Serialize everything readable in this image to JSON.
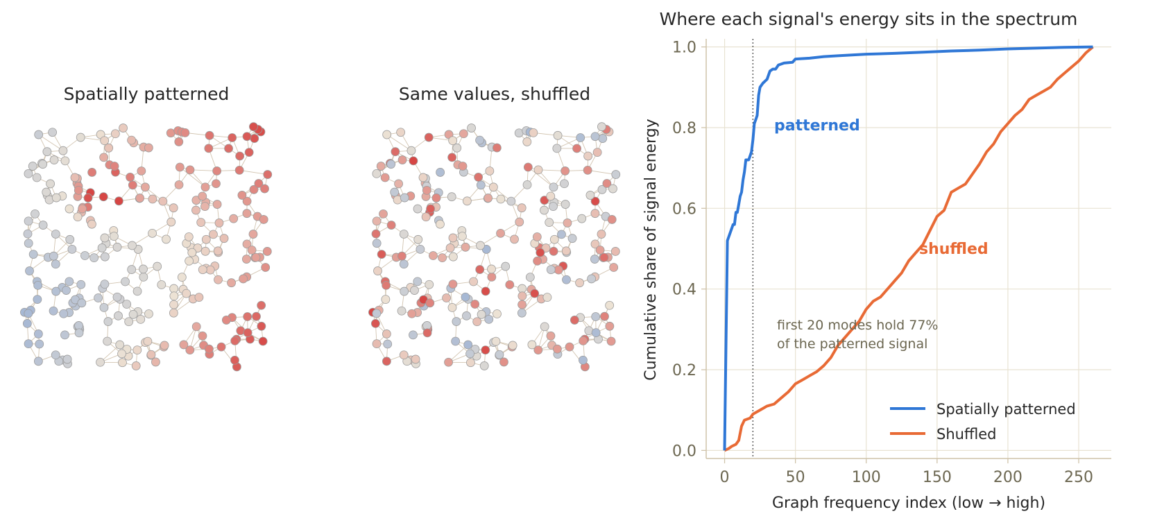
{
  "panels": {
    "left_title": "Spatially patterned",
    "middle_title": "Same values, shuffled"
  },
  "chart_data": {
    "type": "line",
    "title": "Where each signal's energy sits in the spectrum",
    "xlabel": "Graph frequency index (low → high)",
    "ylabel": "Cumulative share of signal energy",
    "xlim": [
      -13,
      273
    ],
    "ylim": [
      -0.02,
      1.02
    ],
    "xticks": [
      0,
      50,
      100,
      150,
      200,
      250
    ],
    "yticks": [
      "0.0",
      "0.2",
      "0.4",
      "0.6",
      "0.8",
      "1.0"
    ],
    "grid": true,
    "legend_position": "lower-right",
    "reference_line_x": 20,
    "series": [
      {
        "name": "Spatially patterned",
        "color": "#2f77d6",
        "inline_label": "patterned",
        "points": [
          [
            0,
            0
          ],
          [
            1,
            0.27
          ],
          [
            2,
            0.52
          ],
          [
            3,
            0.53
          ],
          [
            5,
            0.55
          ],
          [
            6,
            0.56
          ],
          [
            7,
            0.56
          ],
          [
            8,
            0.59
          ],
          [
            9,
            0.59
          ],
          [
            10,
            0.61
          ],
          [
            11,
            0.63
          ],
          [
            12,
            0.64
          ],
          [
            13,
            0.67
          ],
          [
            14,
            0.69
          ],
          [
            15,
            0.72
          ],
          [
            17,
            0.72
          ],
          [
            18,
            0.73
          ],
          [
            19,
            0.74
          ],
          [
            20,
            0.77
          ],
          [
            21,
            0.81
          ],
          [
            22,
            0.82
          ],
          [
            23,
            0.83
          ],
          [
            24,
            0.88
          ],
          [
            25,
            0.9
          ],
          [
            27,
            0.91
          ],
          [
            30,
            0.92
          ],
          [
            32,
            0.94
          ],
          [
            34,
            0.945
          ],
          [
            36,
            0.945
          ],
          [
            38,
            0.955
          ],
          [
            42,
            0.96
          ],
          [
            48,
            0.962
          ],
          [
            50,
            0.97
          ],
          [
            60,
            0.972
          ],
          [
            70,
            0.976
          ],
          [
            80,
            0.978
          ],
          [
            90,
            0.98
          ],
          [
            100,
            0.982
          ],
          [
            120,
            0.984
          ],
          [
            140,
            0.987
          ],
          [
            160,
            0.99
          ],
          [
            180,
            0.992
          ],
          [
            200,
            0.995
          ],
          [
            220,
            0.997
          ],
          [
            240,
            0.999
          ],
          [
            260,
            1.0
          ]
        ]
      },
      {
        "name": "Shuffled",
        "color": "#e86a35",
        "inline_label": "shuffled",
        "points": [
          [
            0,
            0
          ],
          [
            3,
            0.005
          ],
          [
            5,
            0.01
          ],
          [
            8,
            0.015
          ],
          [
            10,
            0.025
          ],
          [
            12,
            0.06
          ],
          [
            14,
            0.075
          ],
          [
            18,
            0.08
          ],
          [
            20,
            0.09
          ],
          [
            25,
            0.1
          ],
          [
            30,
            0.11
          ],
          [
            35,
            0.115
          ],
          [
            40,
            0.13
          ],
          [
            45,
            0.145
          ],
          [
            50,
            0.165
          ],
          [
            55,
            0.175
          ],
          [
            60,
            0.185
          ],
          [
            65,
            0.195
          ],
          [
            70,
            0.21
          ],
          [
            75,
            0.23
          ],
          [
            80,
            0.26
          ],
          [
            85,
            0.28
          ],
          [
            90,
            0.3
          ],
          [
            95,
            0.32
          ],
          [
            100,
            0.35
          ],
          [
            105,
            0.37
          ],
          [
            110,
            0.38
          ],
          [
            115,
            0.4
          ],
          [
            120,
            0.42
          ],
          [
            125,
            0.44
          ],
          [
            130,
            0.47
          ],
          [
            135,
            0.49
          ],
          [
            140,
            0.51
          ],
          [
            145,
            0.545
          ],
          [
            150,
            0.58
          ],
          [
            155,
            0.595
          ],
          [
            160,
            0.64
          ],
          [
            165,
            0.65
          ],
          [
            170,
            0.66
          ],
          [
            175,
            0.685
          ],
          [
            180,
            0.71
          ],
          [
            185,
            0.74
          ],
          [
            190,
            0.76
          ],
          [
            195,
            0.79
          ],
          [
            200,
            0.81
          ],
          [
            205,
            0.83
          ],
          [
            210,
            0.845
          ],
          [
            215,
            0.87
          ],
          [
            220,
            0.88
          ],
          [
            225,
            0.89
          ],
          [
            230,
            0.9
          ],
          [
            235,
            0.92
          ],
          [
            240,
            0.935
          ],
          [
            245,
            0.95
          ],
          [
            250,
            0.965
          ],
          [
            255,
            0.985
          ],
          [
            260,
            1.0
          ]
        ]
      }
    ],
    "annotation": [
      "first 20 modes hold 77%",
      "of the patterned signal"
    ]
  }
}
